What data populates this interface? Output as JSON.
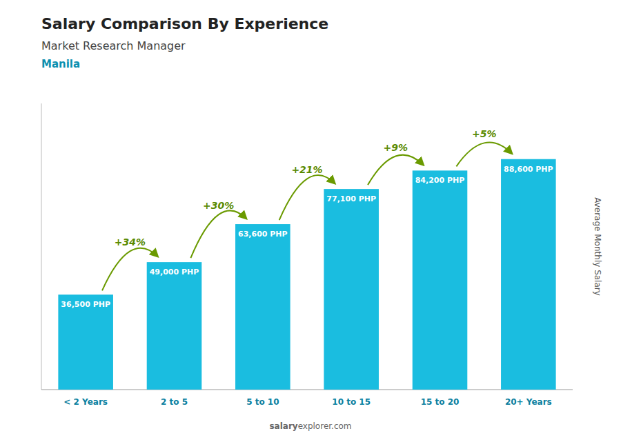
{
  "chart_data": {
    "type": "bar",
    "title": "Salary Comparison By Experience",
    "subtitle": [
      "Market Research Manager",
      "Manila"
    ],
    "categories": [
      "< 2 Years",
      "2 to 5",
      "5 to 10",
      "10 to 15",
      "15 to 20",
      "20+ Years"
    ],
    "values": [
      36500,
      49000,
      63600,
      77100,
      84200,
      88600
    ],
    "value_labels": [
      "36,500 PHP",
      "49,000 PHP",
      "63,600 PHP",
      "77,100 PHP",
      "84,200 PHP",
      "88,600 PHP"
    ],
    "data_labels": true,
    "annotations": [
      "+34%",
      "+30%",
      "+21%",
      "+9%",
      "+5%"
    ],
    "ylabel": "Average Monthly Salary",
    "watermark": [
      "salary",
      "explorer.com"
    ],
    "color": "#1ABDE0",
    "ylim": [
      0,
      110000
    ],
    "yticks": [],
    "tick_labels": "x",
    "grid": false
  }
}
